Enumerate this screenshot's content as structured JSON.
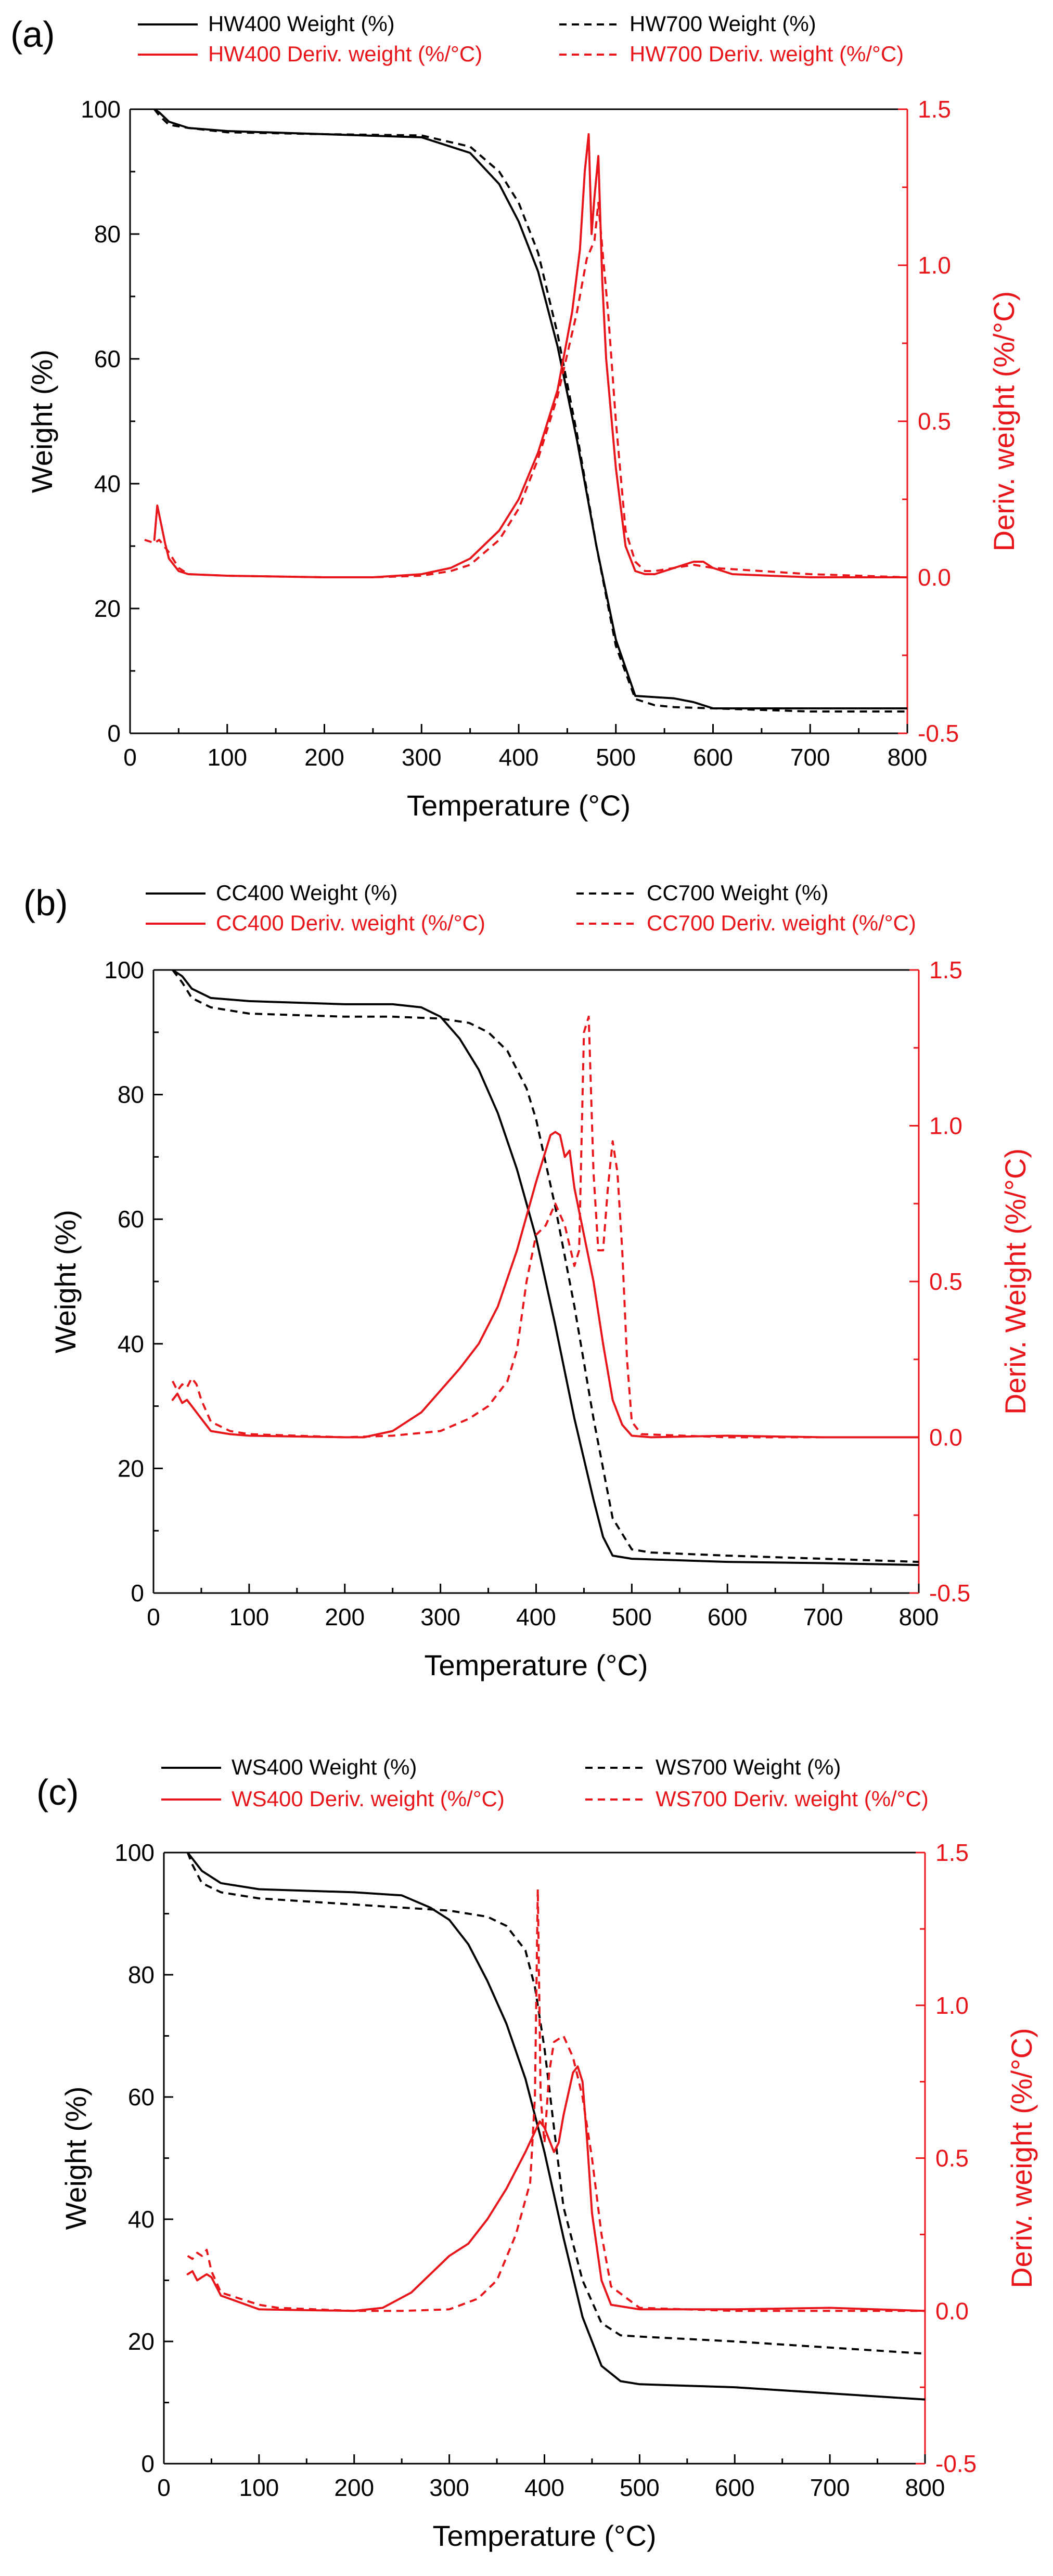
{
  "colors": {
    "weight": "#000000",
    "deriv": "#e8161b"
  },
  "chart_data": [
    {
      "panel_label": "(a)",
      "type": "line",
      "xlabel": "Temperature (°C)",
      "ylabel": "Weight (%)",
      "y2label": "Deriv. weight (%/°C)",
      "xlim": [
        0,
        800
      ],
      "ylim": [
        0,
        100
      ],
      "y2lim": [
        -0.5,
        1.5
      ],
      "xticks": [
        "0",
        "100",
        "200",
        "300",
        "400",
        "500",
        "600",
        "700",
        "800"
      ],
      "yticks": [
        "0",
        "20",
        "40",
        "60",
        "80",
        "100"
      ],
      "y2ticks": [
        "-0.5",
        "0.0",
        "0.5",
        "1.0",
        "1.5"
      ],
      "legend_position": "top",
      "series": [
        {
          "name": "HW400 Weight (%)",
          "axis": "left",
          "style": "solid",
          "color": "#000000",
          "x": [
            25,
            30,
            40,
            60,
            100,
            200,
            300,
            350,
            380,
            400,
            420,
            440,
            460,
            480,
            500,
            520,
            540,
            560,
            580,
            600,
            700,
            800
          ],
          "y": [
            100,
            99.5,
            98,
            97,
            96.5,
            96,
            95.5,
            93,
            88,
            82,
            74,
            62,
            47,
            30,
            15,
            6,
            5.8,
            5.6,
            5,
            4,
            4,
            4
          ]
        },
        {
          "name": "HW700 Weight (%)",
          "axis": "left",
          "style": "dashed",
          "color": "#000000",
          "x": [
            25,
            30,
            40,
            60,
            100,
            200,
            300,
            350,
            380,
            400,
            420,
            440,
            460,
            480,
            500,
            520,
            540,
            560,
            600,
            700,
            800
          ],
          "y": [
            100,
            99,
            97.5,
            97,
            96.3,
            96,
            95.8,
            94,
            90,
            85,
            77,
            64,
            48,
            30,
            14,
            5.5,
            4.5,
            4.2,
            4,
            3.5,
            3.5
          ]
        },
        {
          "name": "HW400 Deriv. weight (%/°C)",
          "axis": "right",
          "style": "solid",
          "color": "#e8161b",
          "x": [
            25,
            28,
            32,
            36,
            40,
            50,
            60,
            100,
            200,
            250,
            300,
            330,
            350,
            380,
            400,
            420,
            440,
            455,
            463,
            468,
            472,
            475,
            478,
            482,
            486,
            490,
            500,
            510,
            520,
            530,
            540,
            560,
            580,
            590,
            600,
            620,
            700,
            800
          ],
          "y": [
            0.12,
            0.23,
            0.17,
            0.11,
            0.06,
            0.02,
            0.01,
            0.005,
            0,
            0,
            0.01,
            0.03,
            0.06,
            0.15,
            0.25,
            0.4,
            0.6,
            0.85,
            1.05,
            1.3,
            1.42,
            1.1,
            1.22,
            1.35,
            0.95,
            0.7,
            0.35,
            0.1,
            0.02,
            0.01,
            0.01,
            0.03,
            0.05,
            0.05,
            0.03,
            0.01,
            0,
            0
          ]
        },
        {
          "name": "HW700 Deriv. weight (%/°C)",
          "axis": "right",
          "style": "dashed",
          "color": "#e8161b",
          "x": [
            15,
            25,
            30,
            40,
            50,
            60,
            100,
            200,
            250,
            300,
            330,
            350,
            380,
            400,
            420,
            440,
            460,
            470,
            478,
            482,
            487,
            492,
            500,
            510,
            520,
            530,
            540,
            560,
            580,
            600,
            700,
            800
          ],
          "y": [
            0.12,
            0.11,
            0.12,
            0.08,
            0.03,
            0.01,
            0.005,
            0,
            0,
            0.005,
            0.02,
            0.04,
            0.12,
            0.22,
            0.38,
            0.58,
            0.85,
            1.02,
            1.08,
            1.2,
            1.02,
            0.85,
            0.5,
            0.15,
            0.05,
            0.02,
            0.02,
            0.03,
            0.04,
            0.03,
            0.01,
            0
          ]
        }
      ]
    },
    {
      "panel_label": "(b)",
      "type": "line",
      "xlabel": "Temperature (°C)",
      "ylabel": "Weight (%)",
      "y2label": "Deriv. Weight (%/°C)",
      "xlim": [
        0,
        800
      ],
      "ylim": [
        0,
        100
      ],
      "y2lim": [
        -0.5,
        1.5
      ],
      "xticks": [
        "0",
        "100",
        "200",
        "300",
        "400",
        "500",
        "600",
        "700",
        "800"
      ],
      "yticks": [
        "0",
        "20",
        "40",
        "60",
        "80",
        "100"
      ],
      "y2ticks": [
        "-0.5",
        "0.0",
        "0.5",
        "1.0",
        "1.5"
      ],
      "legend_position": "top",
      "series": [
        {
          "name": "CC400 Weight (%)",
          "axis": "left",
          "style": "solid",
          "color": "#000000",
          "x": [
            20,
            30,
            40,
            60,
            100,
            200,
            250,
            280,
            300,
            320,
            340,
            360,
            380,
            400,
            420,
            440,
            460,
            470,
            480,
            500,
            600,
            700,
            800
          ],
          "y": [
            100,
            99,
            97,
            95.5,
            95,
            94.5,
            94.5,
            94,
            92.5,
            89,
            84,
            77,
            68,
            57,
            43,
            28,
            15,
            9,
            6,
            5.5,
            5,
            4.8,
            4.5
          ]
        },
        {
          "name": "CC700 Weight (%)",
          "axis": "left",
          "style": "dashed",
          "color": "#000000",
          "x": [
            20,
            30,
            40,
            60,
            100,
            200,
            250,
            300,
            330,
            350,
            370,
            390,
            400,
            420,
            440,
            460,
            480,
            500,
            520,
            600,
            700,
            800
          ],
          "y": [
            100,
            98,
            95.5,
            94,
            93,
            92.5,
            92.5,
            92.2,
            91.5,
            90,
            87,
            81,
            76,
            62,
            46,
            28,
            12,
            7,
            6.5,
            6,
            5.5,
            5
          ]
        },
        {
          "name": "CC400 Deriv. weight (%/°C)",
          "axis": "right",
          "style": "solid",
          "color": "#e8161b",
          "x": [
            20,
            25,
            30,
            35,
            40,
            50,
            60,
            80,
            100,
            200,
            220,
            250,
            280,
            300,
            320,
            340,
            360,
            380,
            400,
            410,
            415,
            420,
            425,
            430,
            435,
            440,
            450,
            460,
            470,
            480,
            490,
            500,
            520,
            600,
            700,
            800
          ],
          "y": [
            0.12,
            0.14,
            0.11,
            0.12,
            0.1,
            0.06,
            0.02,
            0.01,
            0.005,
            0,
            0,
            0.02,
            0.08,
            0.15,
            0.22,
            0.3,
            0.42,
            0.6,
            0.82,
            0.92,
            0.97,
            0.98,
            0.97,
            0.9,
            0.92,
            0.8,
            0.65,
            0.5,
            0.3,
            0.12,
            0.04,
            0.005,
            0,
            0.005,
            0,
            0
          ]
        },
        {
          "name": "CC700 Deriv. weight (%/°C)",
          "axis": "right",
          "style": "dashed",
          "color": "#e8161b",
          "x": [
            20,
            25,
            30,
            35,
            40,
            45,
            50,
            60,
            80,
            100,
            200,
            250,
            300,
            330,
            350,
            370,
            380,
            390,
            400,
            410,
            420,
            430,
            440,
            445,
            450,
            455,
            460,
            465,
            470,
            475,
            480,
            485,
            490,
            495,
            500,
            510,
            600,
            700,
            800
          ],
          "y": [
            0.18,
            0.15,
            0.17,
            0.16,
            0.19,
            0.17,
            0.12,
            0.05,
            0.02,
            0.01,
            0,
            0.005,
            0.02,
            0.06,
            0.1,
            0.18,
            0.28,
            0.5,
            0.65,
            0.68,
            0.75,
            0.68,
            0.55,
            0.6,
            1.3,
            1.35,
            0.85,
            0.6,
            0.6,
            0.8,
            0.95,
            0.85,
            0.6,
            0.25,
            0.05,
            0.01,
            0,
            0,
            0
          ]
        }
      ]
    },
    {
      "panel_label": "(c)",
      "type": "line",
      "xlabel": "Temperature (°C)",
      "ylabel": "Weight (%)",
      "y2label": "Deriv. weight (%/°C)",
      "xlim": [
        0,
        800
      ],
      "ylim": [
        0,
        100
      ],
      "y2lim": [
        -0.5,
        1.5
      ],
      "xticks": [
        "0",
        "100",
        "200",
        "300",
        "400",
        "500",
        "600",
        "700",
        "800"
      ],
      "yticks": [
        "0",
        "20",
        "40",
        "60",
        "80",
        "100"
      ],
      "y2ticks": [
        "-0.5",
        "0.0",
        "0.5",
        "1.0",
        "1.5"
      ],
      "legend_position": "top",
      "series": [
        {
          "name": "WS400 Weight (%)",
          "axis": "left",
          "style": "solid",
          "color": "#000000",
          "x": [
            25,
            30,
            40,
            60,
            100,
            200,
            250,
            280,
            300,
            320,
            340,
            360,
            380,
            400,
            420,
            440,
            460,
            480,
            500,
            600,
            700,
            800
          ],
          "y": [
            100,
            99,
            97,
            95,
            94,
            93.5,
            93,
            91,
            89,
            85,
            79,
            72,
            63,
            51,
            37,
            24,
            16,
            13.5,
            13,
            12.5,
            11.5,
            10.5
          ]
        },
        {
          "name": "WS700 Weight (%)",
          "axis": "left",
          "style": "dashed",
          "color": "#000000",
          "x": [
            25,
            30,
            40,
            60,
            100,
            200,
            250,
            300,
            340,
            360,
            380,
            390,
            400,
            410,
            420,
            440,
            460,
            470,
            480,
            500,
            600,
            700,
            800
          ],
          "y": [
            100,
            98,
            95,
            93.5,
            92.5,
            91.5,
            91,
            90.5,
            89.5,
            88,
            84,
            78,
            68,
            55,
            42,
            30,
            23,
            22,
            21,
            20.8,
            20,
            19,
            18
          ]
        },
        {
          "name": "WS400 Deriv. weight (%/°C)",
          "axis": "right",
          "style": "solid",
          "color": "#e8161b",
          "x": [
            25,
            30,
            35,
            40,
            45,
            50,
            60,
            100,
            200,
            230,
            260,
            280,
            300,
            320,
            340,
            360,
            380,
            395,
            400,
            410,
            415,
            420,
            430,
            435,
            440,
            445,
            450,
            460,
            470,
            500,
            600,
            700,
            800
          ],
          "y": [
            0.12,
            0.13,
            0.1,
            0.11,
            0.12,
            0.11,
            0.05,
            0.005,
            0,
            0.01,
            0.06,
            0.12,
            0.18,
            0.22,
            0.3,
            0.4,
            0.52,
            0.62,
            0.6,
            0.52,
            0.55,
            0.64,
            0.78,
            0.8,
            0.75,
            0.55,
            0.32,
            0.1,
            0.02,
            0.005,
            0.005,
            0.01,
            0
          ]
        },
        {
          "name": "WS700 Deriv. weight (%/°C)",
          "axis": "right",
          "style": "dashed",
          "color": "#e8161b",
          "x": [
            25,
            30,
            35,
            40,
            45,
            50,
            60,
            100,
            120,
            200,
            250,
            300,
            330,
            350,
            370,
            385,
            390,
            393,
            396,
            400,
            405,
            410,
            420,
            430,
            440,
            450,
            460,
            470,
            500,
            600,
            700,
            800
          ],
          "y": [
            0.18,
            0.17,
            0.19,
            0.18,
            0.2,
            0.13,
            0.06,
            0.02,
            0.01,
            0,
            0,
            0.005,
            0.04,
            0.1,
            0.25,
            0.42,
            0.7,
            1.38,
            0.7,
            0.55,
            0.78,
            0.88,
            0.9,
            0.83,
            0.7,
            0.5,
            0.25,
            0.08,
            0.01,
            0,
            0,
            0
          ]
        }
      ]
    }
  ]
}
